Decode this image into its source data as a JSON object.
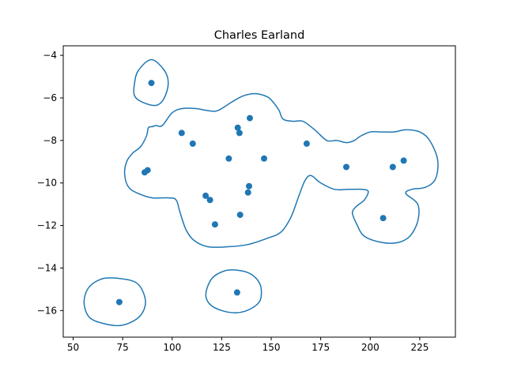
{
  "chart_data": {
    "type": "scatter",
    "title": "Charles Earland",
    "xlabel": "",
    "ylabel": "",
    "xlim": [
      45,
      243
    ],
    "ylim": [
      -17.25,
      -3.55
    ],
    "xticks": [
      50,
      75,
      100,
      125,
      150,
      175,
      200,
      225
    ],
    "yticks": [
      -16,
      -14,
      -12,
      -10,
      -8,
      -6,
      -4
    ],
    "grid": false,
    "series_color": "#1f77b4",
    "points": [
      {
        "x": 89.5,
        "y": -5.3
      },
      {
        "x": 104.8,
        "y": -7.65
      },
      {
        "x": 110.4,
        "y": -8.15
      },
      {
        "x": 86.1,
        "y": -9.5
      },
      {
        "x": 87.6,
        "y": -9.4
      },
      {
        "x": 116.9,
        "y": -10.6
      },
      {
        "x": 119.1,
        "y": -10.8
      },
      {
        "x": 121.6,
        "y": -11.95
      },
      {
        "x": 128.6,
        "y": -8.85
      },
      {
        "x": 133.1,
        "y": -7.4
      },
      {
        "x": 134.0,
        "y": -7.65
      },
      {
        "x": 139.2,
        "y": -6.95
      },
      {
        "x": 138.8,
        "y": -10.15
      },
      {
        "x": 138.3,
        "y": -10.45
      },
      {
        "x": 134.3,
        "y": -11.5
      },
      {
        "x": 146.4,
        "y": -8.85
      },
      {
        "x": 167.9,
        "y": -8.15
      },
      {
        "x": 187.9,
        "y": -9.25
      },
      {
        "x": 211.4,
        "y": -9.25
      },
      {
        "x": 216.9,
        "y": -8.95
      },
      {
        "x": 206.5,
        "y": -11.65
      },
      {
        "x": 73.3,
        "y": -15.6
      },
      {
        "x": 132.8,
        "y": -15.15
      }
    ],
    "contours": [
      [
        [
          81,
          -5.3
        ],
        [
          83,
          -4.7
        ],
        [
          89.5,
          -4.2
        ],
        [
          96,
          -4.7
        ],
        [
          98,
          -5.3
        ],
        [
          96,
          -6.0
        ],
        [
          92,
          -6.35
        ],
        [
          85,
          -6.2
        ],
        [
          81,
          -5.9
        ],
        [
          81,
          -5.3
        ]
      ],
      [
        [
          95,
          -7.3
        ],
        [
          100,
          -6.7
        ],
        [
          105,
          -6.5
        ],
        [
          112,
          -6.5
        ],
        [
          118,
          -6.6
        ],
        [
          123,
          -6.6
        ],
        [
          130,
          -6.2
        ],
        [
          136,
          -5.9
        ],
        [
          142,
          -5.8
        ],
        [
          148,
          -5.95
        ],
        [
          151,
          -6.2
        ],
        [
          154,
          -6.6
        ],
        [
          156,
          -7.0
        ],
        [
          161,
          -7.1
        ],
        [
          166,
          -7.1
        ],
        [
          172,
          -7.5
        ],
        [
          178,
          -8.0
        ],
        [
          183,
          -8.0
        ],
        [
          188,
          -8.1
        ],
        [
          192,
          -8.0
        ],
        [
          195,
          -7.8
        ],
        [
          200,
          -7.6
        ],
        [
          205,
          -7.6
        ],
        [
          212,
          -7.6
        ],
        [
          218,
          -7.5
        ],
        [
          225,
          -7.6
        ],
        [
          230,
          -8.0
        ],
        [
          234,
          -8.9
        ],
        [
          233,
          -9.8
        ],
        [
          228,
          -10.2
        ],
        [
          221,
          -10.3
        ],
        [
          218,
          -10.5
        ],
        [
          224,
          -11.0
        ],
        [
          224,
          -11.8
        ],
        [
          220,
          -12.5
        ],
        [
          214,
          -12.8
        ],
        [
          206,
          -12.8
        ],
        [
          197,
          -12.5
        ],
        [
          193,
          -11.9
        ],
        [
          191,
          -11.4
        ],
        [
          193,
          -11.1
        ],
        [
          197,
          -10.8
        ],
        [
          199,
          -10.4
        ],
        [
          196,
          -10.3
        ],
        [
          189,
          -10.3
        ],
        [
          182,
          -10.3
        ],
        [
          175,
          -10.0
        ],
        [
          170,
          -9.65
        ],
        [
          167,
          -9.9
        ],
        [
          164,
          -10.6
        ],
        [
          160,
          -11.6
        ],
        [
          155,
          -12.3
        ],
        [
          148,
          -12.6
        ],
        [
          138,
          -12.9
        ],
        [
          128,
          -13.0
        ],
        [
          118,
          -13.0
        ],
        [
          111,
          -12.7
        ],
        [
          107,
          -12.2
        ],
        [
          104,
          -11.4
        ],
        [
          102,
          -10.8
        ],
        [
          98,
          -10.7
        ],
        [
          90,
          -10.7
        ],
        [
          83,
          -10.5
        ],
        [
          78,
          -10.2
        ],
        [
          76,
          -9.6
        ],
        [
          77,
          -9.0
        ],
        [
          80,
          -8.6
        ],
        [
          84,
          -8.3
        ],
        [
          87,
          -7.8
        ],
        [
          88,
          -7.4
        ],
        [
          90,
          -7.35
        ],
        [
          92,
          -7.3
        ],
        [
          95,
          -7.3
        ]
      ],
      [
        [
          55.5,
          -15.6
        ],
        [
          58,
          -14.9
        ],
        [
          65,
          -14.5
        ],
        [
          74,
          -14.5
        ],
        [
          82,
          -14.7
        ],
        [
          86,
          -15.3
        ],
        [
          86,
          -15.9
        ],
        [
          82,
          -16.4
        ],
        [
          74,
          -16.7
        ],
        [
          65,
          -16.6
        ],
        [
          58,
          -16.3
        ],
        [
          55.5,
          -15.6
        ]
      ],
      [
        [
          117,
          -15.2
        ],
        [
          120,
          -14.5
        ],
        [
          126,
          -14.15
        ],
        [
          133,
          -14.1
        ],
        [
          140,
          -14.3
        ],
        [
          144.5,
          -14.8
        ],
        [
          144.5,
          -15.5
        ],
        [
          140,
          -15.9
        ],
        [
          133,
          -16.1
        ],
        [
          125,
          -16.0
        ],
        [
          119,
          -15.7
        ],
        [
          117,
          -15.2
        ]
      ]
    ]
  }
}
